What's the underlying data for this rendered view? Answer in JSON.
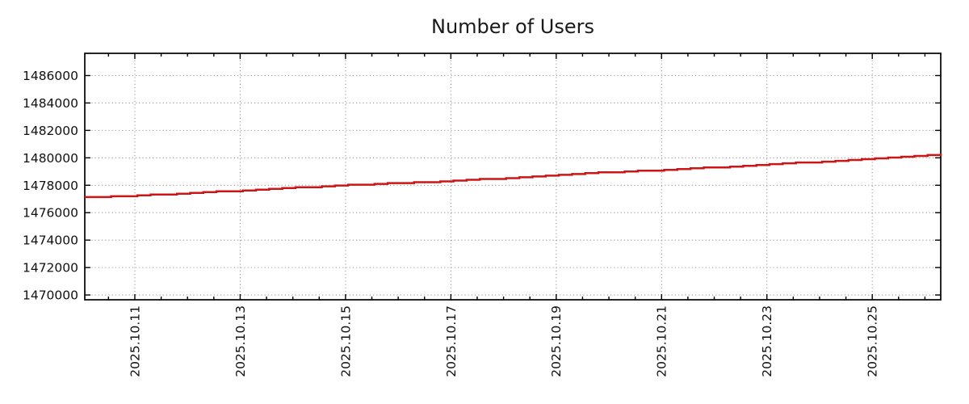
{
  "figure": {
    "background": "#ffffff"
  },
  "colors": {
    "axis": "#000000",
    "grid": "#9a9a9a",
    "text": "#111111",
    "line": "#cc1616",
    "background": "#ffffff"
  },
  "chart_data": {
    "type": "line",
    "title": "Number of Users",
    "xlabel": "",
    "ylabel": "",
    "legend": "none",
    "grid": "dotted",
    "x_axis": {
      "epoch": "2025-10-10",
      "unit": "days",
      "lim": [
        0.05,
        16.3
      ],
      "major_ticks": [
        1,
        3,
        5,
        7,
        9,
        11,
        13,
        15
      ],
      "major_tick_labels": [
        "2025.10.11",
        "2025.10.13",
        "2025.10.15",
        "2025.10.17",
        "2025.10.19",
        "2025.10.21",
        "2025.10.23",
        "2025.10.25"
      ],
      "minor_tick_interval": 0.5,
      "label_rotation_deg": 90
    },
    "y_axis": {
      "lim": [
        1469650,
        1487620
      ],
      "major_ticks": [
        1470000,
        1472000,
        1474000,
        1476000,
        1478000,
        1480000,
        1482000,
        1484000,
        1486000
      ],
      "major_tick_labels": [
        "1470000",
        "1472000",
        "1474000",
        "1476000",
        "1478000",
        "1480000",
        "1482000",
        "1484000",
        "1486000"
      ]
    },
    "series": [
      {
        "name": "Number of Users",
        "color": "#cc1616",
        "line_width": 2.5,
        "style": "steps",
        "step_quantum": 60,
        "sample_interval": 0.25,
        "points": [
          [
            0.05,
            1477120
          ],
          [
            0.5,
            1477180
          ],
          [
            1.0,
            1477260
          ],
          [
            1.5,
            1477340
          ],
          [
            2.0,
            1477430
          ],
          [
            2.5,
            1477520
          ],
          [
            3.0,
            1477620
          ],
          [
            3.5,
            1477720
          ],
          [
            4.0,
            1477820
          ],
          [
            4.5,
            1477920
          ],
          [
            5.0,
            1478010
          ],
          [
            5.5,
            1478090
          ],
          [
            6.0,
            1478160
          ],
          [
            6.5,
            1478240
          ],
          [
            7.0,
            1478330
          ],
          [
            7.5,
            1478420
          ],
          [
            8.0,
            1478530
          ],
          [
            8.5,
            1478650
          ],
          [
            9.0,
            1478770
          ],
          [
            9.5,
            1478870
          ],
          [
            10.0,
            1478960
          ],
          [
            10.5,
            1479040
          ],
          [
            11.0,
            1479120
          ],
          [
            11.5,
            1479210
          ],
          [
            12.0,
            1479310
          ],
          [
            12.5,
            1479410
          ],
          [
            13.0,
            1479520
          ],
          [
            13.5,
            1479620
          ],
          [
            14.0,
            1479730
          ],
          [
            14.5,
            1479840
          ],
          [
            15.0,
            1479950
          ],
          [
            15.5,
            1480070
          ],
          [
            16.0,
            1480200
          ],
          [
            16.3,
            1480330
          ]
        ]
      }
    ]
  }
}
